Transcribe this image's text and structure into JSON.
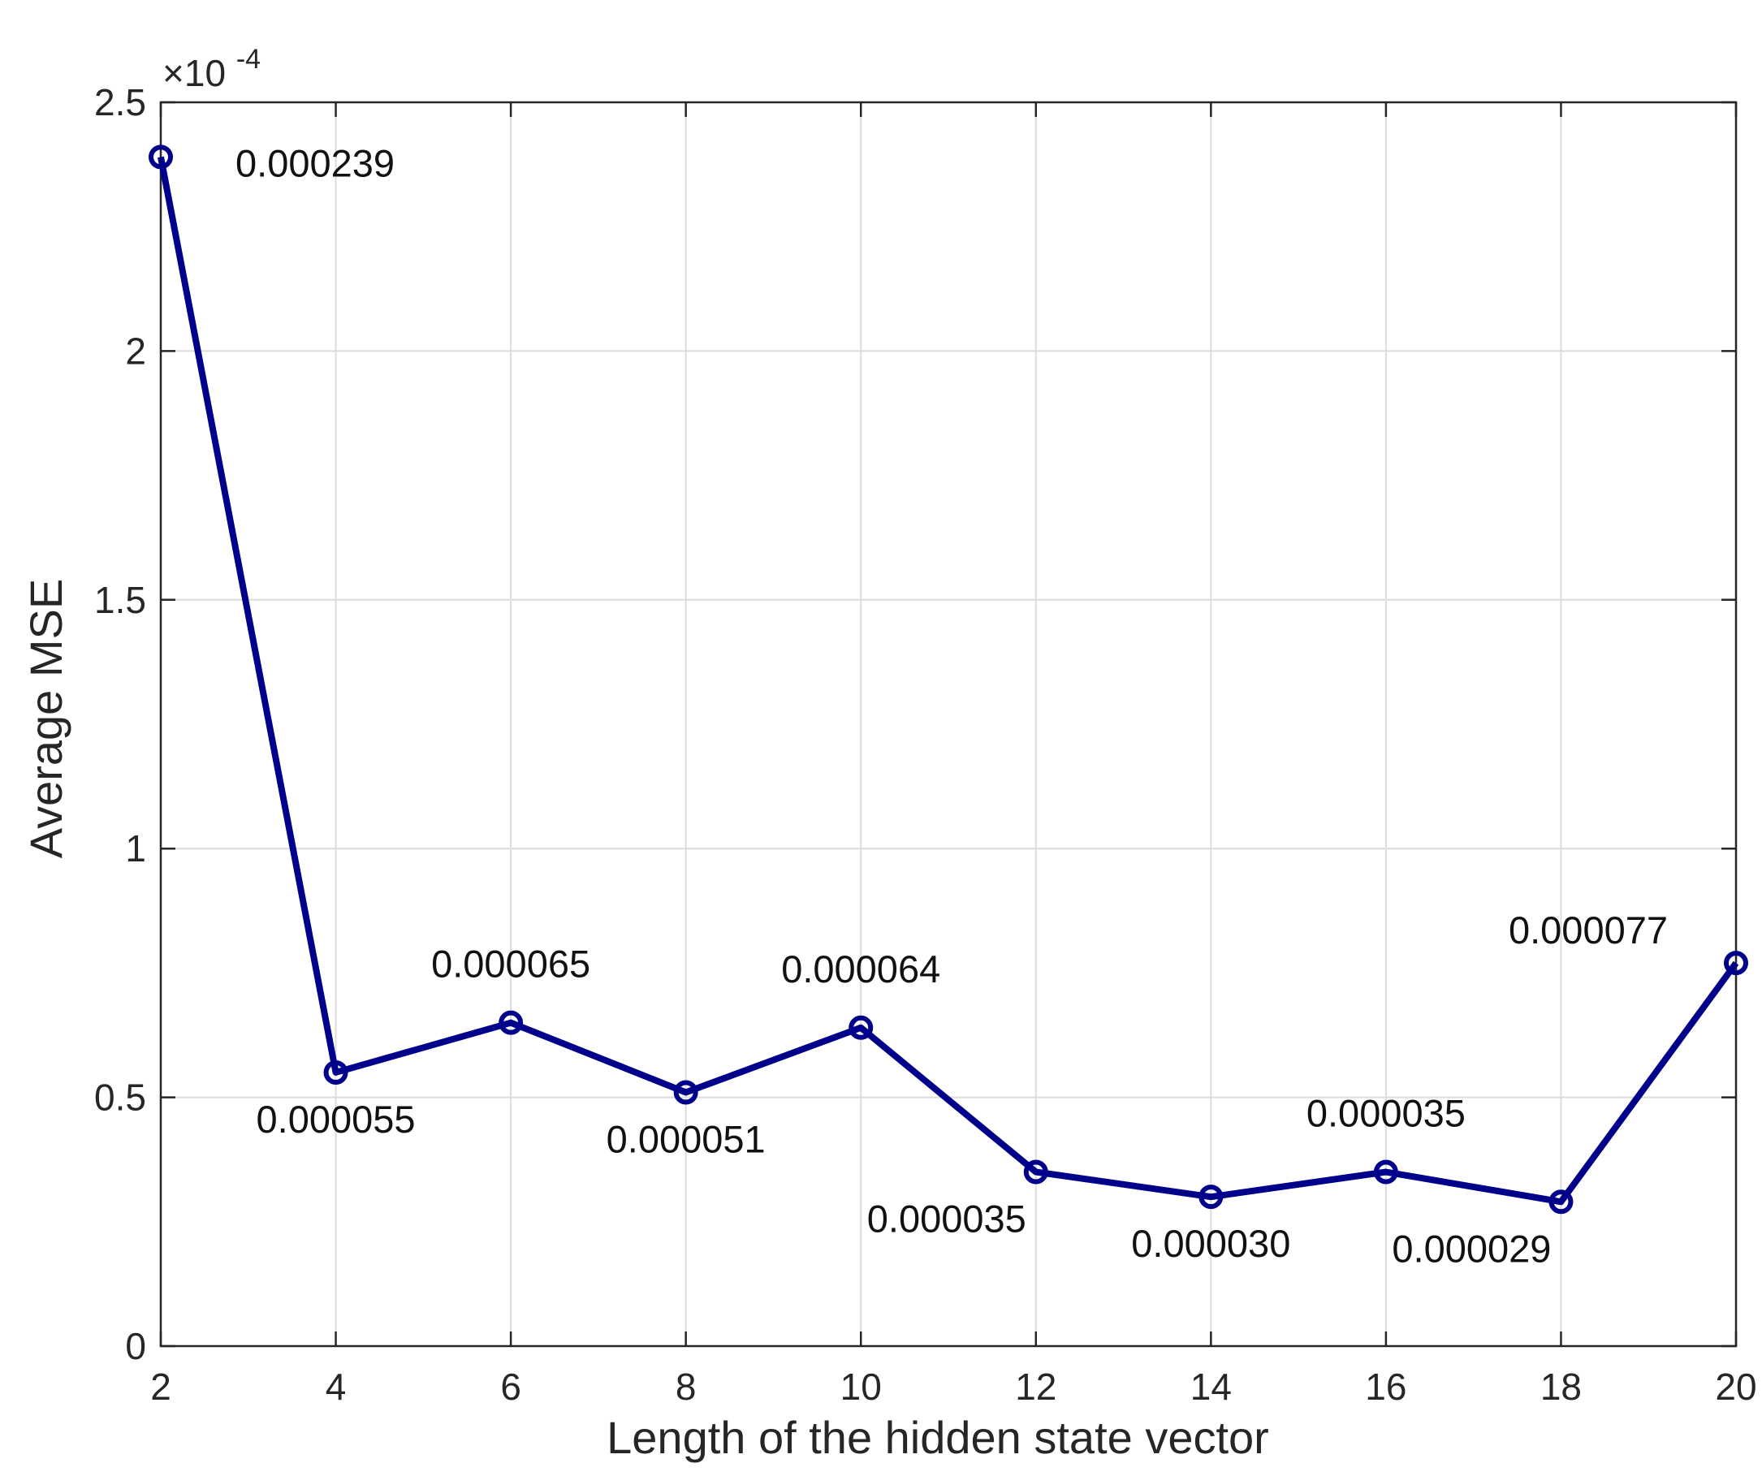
{
  "chart_data": {
    "type": "line",
    "title": "",
    "xlabel": "Length of the hidden state vector",
    "ylabel": "Average MSE",
    "y_exponent_label": {
      "prefix": "×10",
      "exponent": "-4"
    },
    "xlim": [
      2,
      20
    ],
    "ylim": [
      0,
      2.5
    ],
    "xticks": [
      2,
      4,
      6,
      8,
      10,
      12,
      14,
      16,
      18,
      20
    ],
    "xtick_labels": [
      "2",
      "4",
      "6",
      "8",
      "10",
      "12",
      "14",
      "16",
      "18",
      "20"
    ],
    "yticks": [
      0,
      0.5,
      1,
      1.5,
      2,
      2.5
    ],
    "ytick_labels": [
      "0",
      "0.5",
      "1",
      "1.5",
      "2",
      "2.5"
    ],
    "grid": true,
    "series": [
      {
        "color": "#00008b",
        "marker": "circle",
        "x": [
          2,
          4,
          6,
          8,
          10,
          12,
          14,
          16,
          18,
          20
        ],
        "y": [
          2.39,
          0.55,
          0.65,
          0.51,
          0.64,
          0.35,
          0.3,
          0.35,
          0.29,
          0.77
        ]
      }
    ],
    "data_labels": [
      {
        "text": "0.000239",
        "x": 2,
        "placement": "below-right"
      },
      {
        "text": "0.000055",
        "x": 4,
        "placement": "below"
      },
      {
        "text": "0.000065",
        "x": 6,
        "placement": "above"
      },
      {
        "text": "0.000051",
        "x": 8,
        "placement": "below"
      },
      {
        "text": "0.000064",
        "x": 10,
        "placement": "above"
      },
      {
        "text": "0.000035",
        "x": 12,
        "placement": "below-left"
      },
      {
        "text": "0.000030",
        "x": 14,
        "placement": "below"
      },
      {
        "text": "0.000035",
        "x": 16,
        "placement": "above"
      },
      {
        "text": "0.000029",
        "x": 18,
        "placement": "below-left"
      },
      {
        "text": "0.000077",
        "x": 20,
        "placement": "above-left"
      }
    ],
    "colors": {
      "line": "#00008b",
      "grid": "#dcdcdc",
      "axes": "#262626"
    }
  }
}
